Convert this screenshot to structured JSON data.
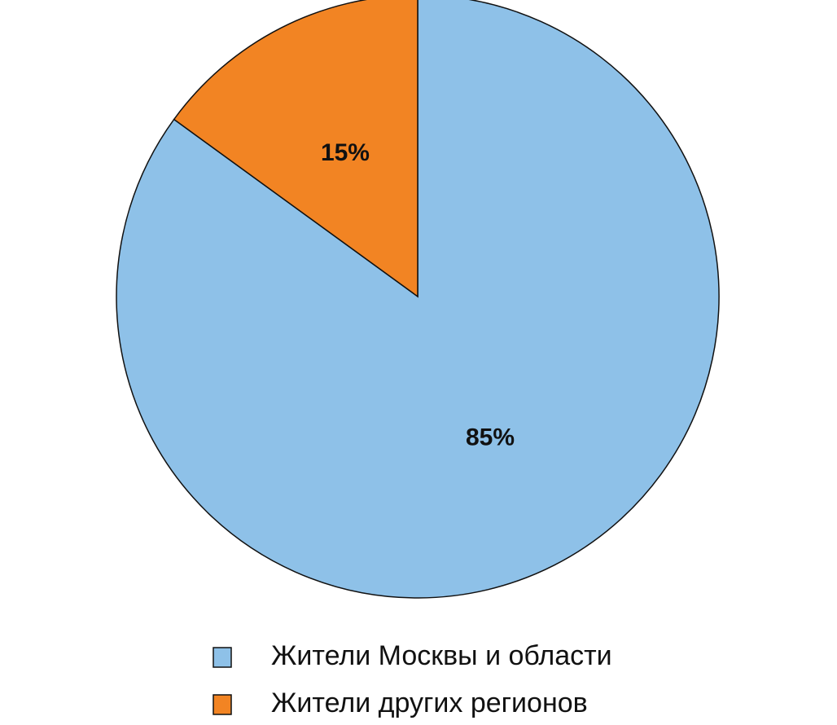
{
  "chart_data": {
    "type": "pie",
    "categories": [
      "Жители Москвы и области",
      "Жители других регионов"
    ],
    "values": [
      85,
      15
    ],
    "value_labels": [
      "85%",
      "15%"
    ],
    "colors": [
      "#8ec1e8",
      "#f28423"
    ]
  }
}
